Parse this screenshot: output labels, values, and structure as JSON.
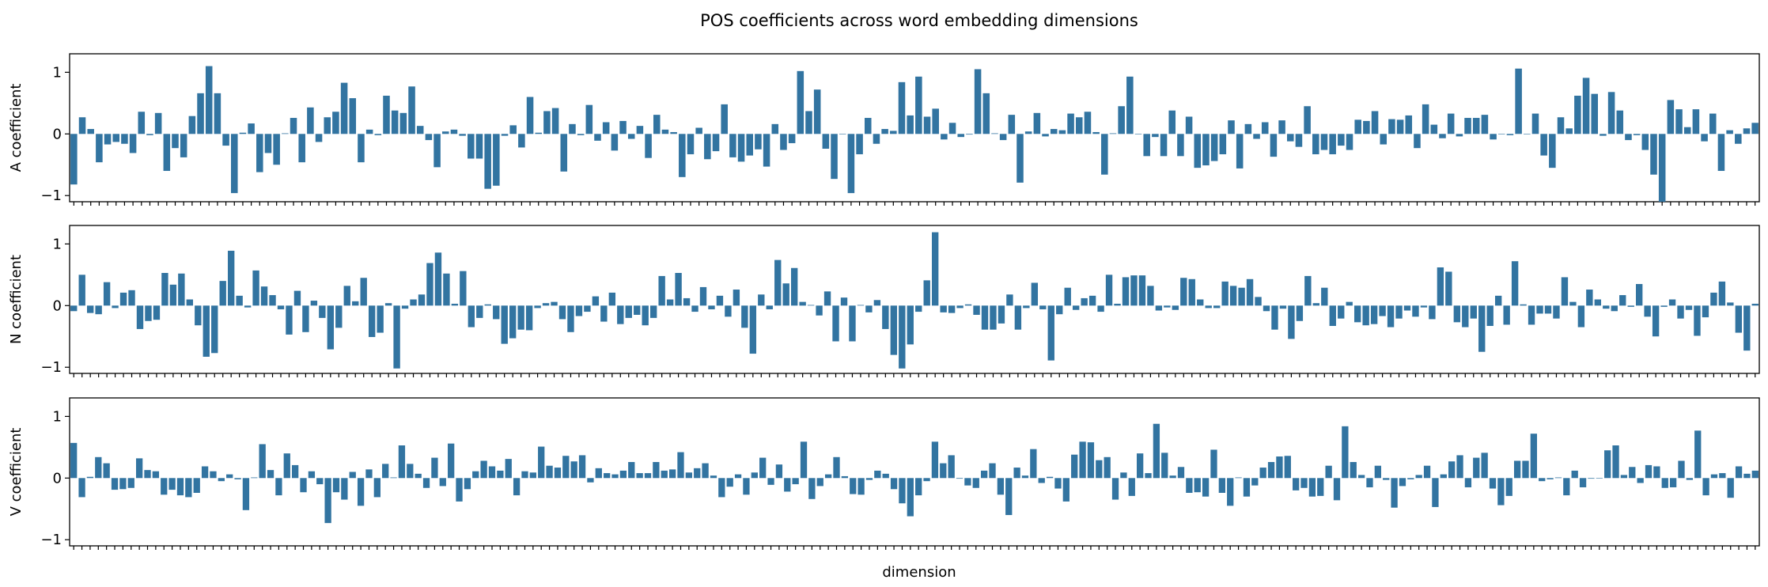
{
  "chart_data": {
    "type": "bar",
    "title": "POS coefficients across word embedding dimensions",
    "xlabel": "dimension",
    "x_tick_labels_visible": false,
    "categories_count": 200,
    "color": "#3274a1",
    "panels": [
      {
        "ylabel": "A coefficient",
        "ylim": [
          -1.1,
          1.3
        ],
        "yticks": [
          -1,
          0,
          1
        ],
        "values": [
          -0.82,
          0.27,
          0.08,
          -0.46,
          -0.17,
          -0.13,
          -0.16,
          -0.31,
          0.36,
          -0.02,
          0.34,
          -0.6,
          -0.23,
          -0.38,
          0.29,
          0.66,
          1.1,
          0.66,
          -0.19,
          -0.96,
          0.02,
          0.17,
          -0.62,
          -0.31,
          -0.5,
          0.01,
          0.26,
          -0.46,
          0.43,
          -0.13,
          0.27,
          0.36,
          0.83,
          0.58,
          -0.46,
          0.07,
          -0.02,
          0.62,
          0.38,
          0.34,
          0.77,
          0.13,
          -0.1,
          -0.54,
          0.04,
          0.07,
          -0.03,
          -0.4,
          -0.4,
          -0.89,
          -0.84,
          -0.03,
          0.14,
          -0.22,
          0.6,
          0.02,
          0.37,
          0.42,
          -0.61,
          0.16,
          -0.02,
          0.47,
          -0.11,
          0.19,
          -0.27,
          0.21,
          -0.08,
          0.13,
          -0.39,
          0.31,
          0.07,
          0.03,
          -0.7,
          -0.33,
          0.1,
          -0.41,
          -0.28,
          0.48,
          -0.38,
          -0.45,
          -0.35,
          -0.25,
          -0.53,
          0.16,
          -0.26,
          -0.15,
          1.02,
          0.37,
          0.72,
          -0.24,
          -0.73,
          0.0,
          -0.96,
          -0.33,
          0.26,
          -0.16,
          0.08,
          0.05,
          0.84,
          0.3,
          0.93,
          0.28,
          0.41,
          -0.09,
          0.18,
          -0.05,
          -0.01,
          1.05,
          0.66,
          0.01,
          -0.1,
          0.31,
          -0.79,
          0.04,
          0.34,
          -0.04,
          0.08,
          0.06,
          0.33,
          0.27,
          0.36,
          0.03,
          -0.66,
          0.01,
          0.45,
          0.93,
          0.0,
          -0.36,
          -0.05,
          -0.36,
          0.38,
          -0.36,
          0.28,
          -0.55,
          -0.51,
          -0.44,
          -0.33,
          0.22,
          -0.56,
          0.16,
          -0.08,
          0.19,
          -0.37,
          0.22,
          -0.12,
          -0.21,
          0.45,
          -0.33,
          -0.26,
          -0.33,
          -0.19,
          -0.26,
          0.23,
          0.21,
          0.37,
          -0.17,
          0.24,
          0.23,
          0.3,
          -0.23,
          0.48,
          0.15,
          -0.07,
          0.33,
          -0.04,
          0.26,
          0.26,
          0.31,
          -0.09,
          0.0,
          -0.02,
          1.06,
          0.0,
          0.33,
          -0.35,
          -0.55,
          0.27,
          0.09,
          0.62,
          0.91,
          0.65,
          -0.03,
          0.68,
          0.38,
          -0.1,
          -0.02,
          -0.26,
          -0.66,
          -1.1,
          0.55,
          0.4,
          0.11,
          0.4,
          -0.12,
          0.33,
          -0.6,
          0.06,
          -0.16,
          0.09,
          0.18
        ]
      },
      {
        "ylabel": "N coefficient",
        "ylim": [
          -1.1,
          1.3
        ],
        "yticks": [
          -1,
          0,
          1
        ],
        "values": [
          -0.09,
          0.5,
          -0.12,
          -0.14,
          0.38,
          -0.04,
          0.21,
          0.25,
          -0.38,
          -0.25,
          -0.23,
          0.53,
          0.34,
          0.52,
          0.1,
          -0.32,
          -0.83,
          -0.77,
          0.4,
          0.89,
          0.16,
          -0.03,
          0.57,
          0.31,
          0.17,
          -0.06,
          -0.47,
          0.24,
          -0.43,
          0.08,
          -0.2,
          -0.71,
          -0.36,
          0.32,
          0.07,
          0.45,
          -0.51,
          -0.44,
          0.04,
          -1.02,
          -0.05,
          0.1,
          0.18,
          0.69,
          0.86,
          0.52,
          0.03,
          0.56,
          -0.35,
          -0.2,
          0.02,
          -0.22,
          -0.62,
          -0.53,
          -0.39,
          -0.4,
          -0.04,
          0.04,
          0.06,
          -0.22,
          -0.43,
          -0.17,
          -0.1,
          0.15,
          -0.26,
          0.21,
          -0.3,
          -0.2,
          -0.15,
          -0.32,
          -0.2,
          0.48,
          0.1,
          0.53,
          0.12,
          -0.1,
          0.3,
          -0.06,
          0.16,
          -0.18,
          0.26,
          -0.36,
          -0.78,
          0.18,
          -0.06,
          0.74,
          0.36,
          0.61,
          0.06,
          0.01,
          -0.16,
          0.23,
          -0.58,
          0.13,
          -0.58,
          0.01,
          -0.11,
          0.09,
          -0.38,
          -0.8,
          -1.02,
          -0.63,
          -0.1,
          0.41,
          1.19,
          -0.11,
          -0.12,
          -0.04,
          0.02,
          -0.15,
          -0.39,
          -0.39,
          -0.29,
          0.18,
          -0.39,
          -0.04,
          0.37,
          -0.06,
          -0.89,
          -0.14,
          0.29,
          -0.07,
          0.12,
          0.16,
          -0.1,
          0.5,
          0.03,
          0.46,
          0.49,
          0.49,
          0.32,
          -0.08,
          -0.03,
          -0.07,
          0.45,
          0.43,
          0.1,
          -0.04,
          -0.04,
          0.39,
          0.32,
          0.29,
          0.43,
          0.14,
          -0.09,
          -0.39,
          -0.05,
          -0.54,
          -0.25,
          0.48,
          0.04,
          0.29,
          -0.33,
          -0.21,
          0.06,
          -0.27,
          -0.32,
          -0.3,
          -0.17,
          -0.35,
          -0.21,
          -0.08,
          -0.18,
          -0.03,
          -0.22,
          0.62,
          0.55,
          -0.27,
          -0.35,
          -0.21,
          -0.75,
          -0.33,
          0.16,
          -0.31,
          0.72,
          0.02,
          -0.31,
          -0.13,
          -0.13,
          -0.21,
          0.46,
          0.06,
          -0.35,
          0.26,
          0.1,
          -0.05,
          -0.09,
          0.17,
          -0.02,
          0.35,
          -0.18,
          -0.5,
          -0.02,
          0.1,
          -0.21,
          -0.07,
          -0.49,
          -0.19,
          0.21,
          0.39,
          0.05,
          -0.44,
          -0.73,
          0.03
        ]
      },
      {
        "ylabel": "V coefficient",
        "ylim": [
          -1.1,
          1.3
        ],
        "yticks": [
          -1,
          0,
          1
        ],
        "values": [
          0.57,
          -0.31,
          0.02,
          0.34,
          0.24,
          -0.19,
          -0.18,
          -0.16,
          0.32,
          0.13,
          0.11,
          -0.27,
          -0.19,
          -0.28,
          -0.31,
          -0.24,
          0.19,
          0.11,
          -0.05,
          0.06,
          -0.02,
          -0.52,
          0.01,
          0.55,
          0.13,
          -0.28,
          0.4,
          0.21,
          -0.23,
          0.11,
          -0.1,
          -0.73,
          -0.23,
          -0.35,
          0.1,
          -0.45,
          0.14,
          -0.31,
          0.23,
          0.01,
          0.53,
          0.23,
          0.07,
          -0.16,
          0.33,
          -0.13,
          0.56,
          -0.38,
          -0.18,
          0.11,
          0.28,
          0.19,
          0.12,
          0.31,
          -0.28,
          0.11,
          0.09,
          0.51,
          0.2,
          0.17,
          0.36,
          0.27,
          0.37,
          -0.07,
          0.16,
          0.08,
          0.06,
          0.12,
          0.26,
          0.08,
          0.08,
          0.26,
          0.12,
          0.14,
          0.42,
          0.09,
          0.16,
          0.24,
          0.04,
          -0.31,
          -0.14,
          0.06,
          -0.27,
          0.09,
          0.33,
          -0.11,
          0.22,
          -0.22,
          -0.1,
          0.59,
          -0.34,
          -0.13,
          0.06,
          0.34,
          0.03,
          -0.26,
          -0.27,
          -0.03,
          0.12,
          0.07,
          -0.18,
          -0.41,
          -0.62,
          -0.28,
          -0.05,
          0.59,
          0.24,
          0.37,
          -0.01,
          -0.12,
          -0.16,
          0.12,
          0.24,
          -0.27,
          -0.6,
          0.17,
          0.04,
          0.47,
          -0.08,
          0.02,
          -0.17,
          -0.38,
          0.38,
          0.59,
          0.58,
          0.29,
          0.34,
          -0.35,
          0.09,
          -0.29,
          0.4,
          0.08,
          0.88,
          0.41,
          0.04,
          0.18,
          -0.24,
          -0.23,
          -0.3,
          0.46,
          -0.24,
          -0.45,
          0.01,
          -0.3,
          -0.12,
          0.17,
          0.26,
          0.35,
          0.36,
          -0.2,
          -0.16,
          -0.3,
          -0.29,
          0.2,
          -0.36,
          0.84,
          0.26,
          0.05,
          -0.15,
          0.2,
          -0.03,
          -0.48,
          -0.13,
          -0.02,
          0.05,
          0.2,
          -0.47,
          0.06,
          0.27,
          0.37,
          -0.15,
          0.33,
          0.41,
          -0.17,
          -0.44,
          -0.29,
          0.28,
          0.28,
          0.72,
          -0.05,
          -0.02,
          0.01,
          -0.28,
          0.12,
          -0.15,
          -0.01,
          0.0,
          0.45,
          0.53,
          0.05,
          0.18,
          -0.08,
          0.21,
          0.19,
          -0.16,
          -0.15,
          0.28,
          -0.03,
          0.77,
          -0.28,
          0.06,
          0.08,
          -0.32,
          0.19,
          0.07,
          0.12
        ]
      }
    ]
  }
}
